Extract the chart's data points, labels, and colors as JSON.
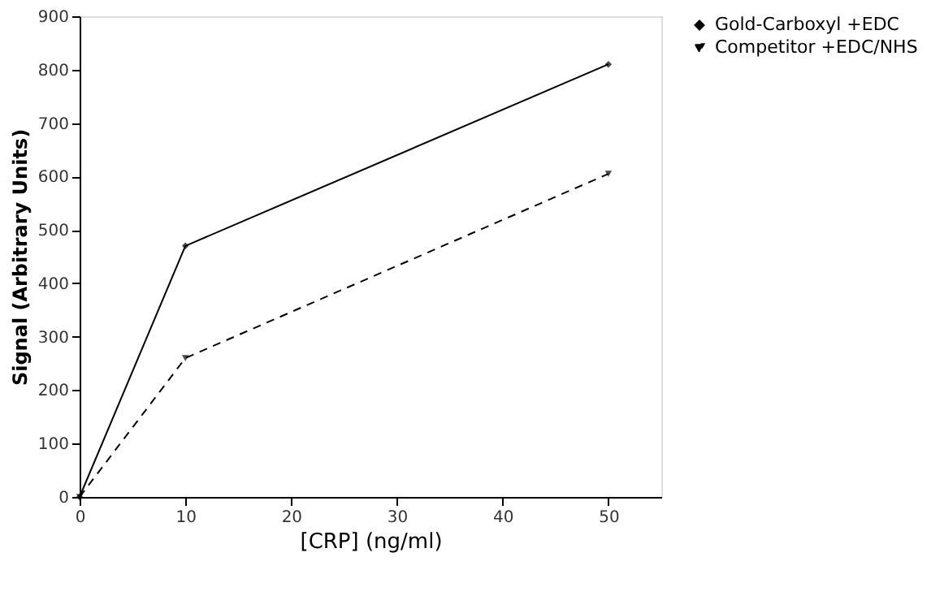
{
  "chart_data": {
    "type": "line",
    "xlabel": "[CRP] (ng/ml)",
    "ylabel": "Signal (Arbitrary Units)",
    "x": [
      0,
      10,
      50
    ],
    "series": [
      {
        "name": "Gold-Carboxyl +EDC",
        "color": "#000000",
        "values": [
          0,
          470,
          810
        ],
        "line_style": "solid",
        "marker": "diamond"
      },
      {
        "name": "Competitor +EDC/NHS",
        "color": "#000000",
        "values": [
          0,
          260,
          605
        ],
        "line_style": "dashed",
        "marker": "triangle"
      }
    ],
    "xlim": [
      0,
      55
    ],
    "xticks": [
      0,
      10,
      20,
      30,
      40,
      50
    ],
    "ylim": [
      0,
      900
    ],
    "yticks": [
      0,
      100,
      200,
      300,
      400,
      500,
      600,
      700,
      800,
      900
    ],
    "grid": false,
    "legend": "right"
  }
}
